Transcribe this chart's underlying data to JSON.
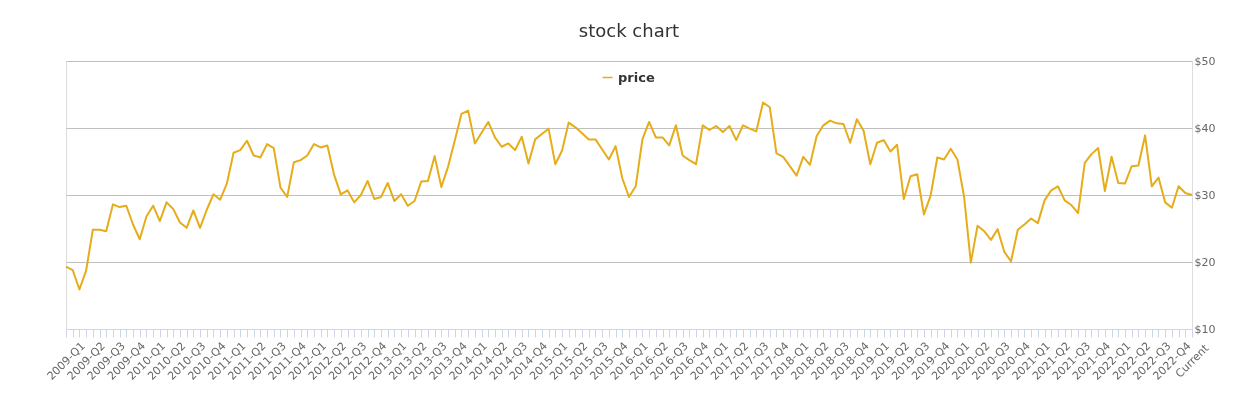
{
  "chart_data": {
    "type": "line",
    "title": "stock chart",
    "categories": [
      "2009-Q1",
      null,
      null,
      "2009-Q2",
      null,
      null,
      "2009-Q3",
      null,
      null,
      "2009-Q4",
      null,
      null,
      "2010-Q1",
      null,
      null,
      "2010-Q2",
      null,
      null,
      "2010-Q3",
      null,
      null,
      "2010-Q4",
      null,
      null,
      "2011-Q1",
      null,
      null,
      "2011-Q2",
      null,
      null,
      "2011-Q3",
      null,
      null,
      "2011-Q4",
      null,
      null,
      "2012-Q1",
      null,
      null,
      "2012-Q2",
      null,
      null,
      "2012-Q3",
      null,
      null,
      "2012-Q4",
      null,
      null,
      "2013-Q1",
      null,
      null,
      "2013-Q2",
      null,
      null,
      "2013-Q3",
      null,
      null,
      "2013-Q4",
      null,
      null,
      "2014-Q1",
      null,
      null,
      "2014-Q2",
      null,
      null,
      "2014-Q3",
      null,
      null,
      "2014-Q4",
      null,
      null,
      "2015-Q1",
      null,
      null,
      "2015-Q2",
      null,
      null,
      "2015-Q3",
      null,
      null,
      "2015-Q4",
      null,
      null,
      "2016-Q1",
      null,
      null,
      "2016-Q2",
      null,
      null,
      "2016-Q3",
      null,
      null,
      "2016-Q4",
      null,
      null,
      "2017-Q1",
      null,
      null,
      "2017-Q2",
      null,
      null,
      "2017-Q3",
      null,
      null,
      "2017-Q4",
      null,
      null,
      "2018-Q1",
      null,
      null,
      "2018-Q2",
      null,
      null,
      "2018-Q3",
      null,
      null,
      "2018-Q4",
      null,
      null,
      "2019-Q1",
      null,
      null,
      "2019-Q2",
      null,
      null,
      "2019-Q3",
      null,
      null,
      "2019-Q4",
      null,
      null,
      "2020-Q1",
      null,
      null,
      "2020-Q2",
      null,
      null,
      "2020-Q3",
      null,
      null,
      "2020-Q4",
      null,
      null,
      "2021-Q1",
      null,
      null,
      "2021-Q2",
      null,
      null,
      "2021-Q3",
      null,
      null,
      "2021-Q4",
      null,
      null,
      "2022-Q1",
      null,
      null,
      "2022-Q2",
      null,
      null,
      "2022-Q3",
      null,
      null,
      "2022-Q4",
      null,
      null,
      "Current"
    ],
    "series": [
      {
        "name": "price",
        "color": "#e6ad1b",
        "values": [
          19.3,
          18.8,
          15.9,
          18.7,
          24.8,
          24.8,
          24.6,
          28.6,
          28.2,
          28.4,
          25.6,
          23.4,
          26.8,
          28.4,
          26.1,
          28.9,
          27.9,
          25.9,
          25.1,
          27.7,
          25.1,
          27.8,
          30.1,
          29.3,
          31.7,
          36.3,
          36.7,
          38.1,
          35.9,
          35.6,
          37.6,
          37.0,
          31.1,
          29.7,
          34.9,
          35.2,
          35.9,
          37.6,
          37.1,
          37.4,
          33.0,
          30.1,
          30.7,
          28.9,
          30.0,
          32.1,
          29.4,
          29.7,
          31.8,
          29.1,
          30.1,
          28.4,
          29.1,
          32.0,
          32.1,
          35.8,
          31.2,
          34.2,
          38.1,
          42.1,
          42.6,
          37.7,
          39.3,
          40.9,
          38.6,
          37.2,
          37.7,
          36.7,
          38.7,
          34.7,
          38.3,
          39.1,
          39.9,
          34.6,
          36.6,
          40.8,
          40.1,
          39.2,
          38.3,
          38.3,
          36.8,
          35.3,
          37.3,
          32.5,
          29.7,
          31.3,
          38.3,
          40.9,
          38.6,
          38.6,
          37.4,
          40.4,
          35.9,
          35.2,
          34.6,
          40.4,
          39.7,
          40.3,
          39.4,
          40.3,
          38.2,
          40.4,
          39.9,
          39.5,
          43.8,
          43.1,
          36.2,
          35.7,
          34.3,
          32.9,
          35.7,
          34.5,
          38.8,
          40.4,
          41.1,
          40.7,
          40.6,
          37.8,
          41.3,
          39.6,
          34.6,
          37.8,
          38.2,
          36.5,
          37.5,
          29.4,
          32.8,
          33.1,
          27.1,
          29.9,
          35.6,
          35.3,
          36.9,
          35.3,
          29.7,
          19.9,
          25.4,
          24.6,
          23.3,
          24.9,
          21.5,
          20.1,
          24.8,
          25.6,
          26.5,
          25.8,
          29.2,
          30.7,
          31.3,
          29.2,
          28.5,
          27.3,
          34.8,
          36.1,
          37.0,
          30.6,
          35.7,
          31.8,
          31.7,
          34.3,
          34.4,
          38.9,
          31.3,
          32.6,
          28.9,
          28.1,
          31.3,
          30.3,
          30.0
        ]
      }
    ],
    "ylim": [
      10,
      50
    ],
    "yticks": [
      {
        "value": 10,
        "label": "$10"
      },
      {
        "value": 20,
        "label": "$20"
      },
      {
        "value": 30,
        "label": "$30"
      },
      {
        "value": 40,
        "label": "$40"
      },
      {
        "value": 50,
        "label": "$50"
      }
    ],
    "grid": "y",
    "legend": "top"
  }
}
